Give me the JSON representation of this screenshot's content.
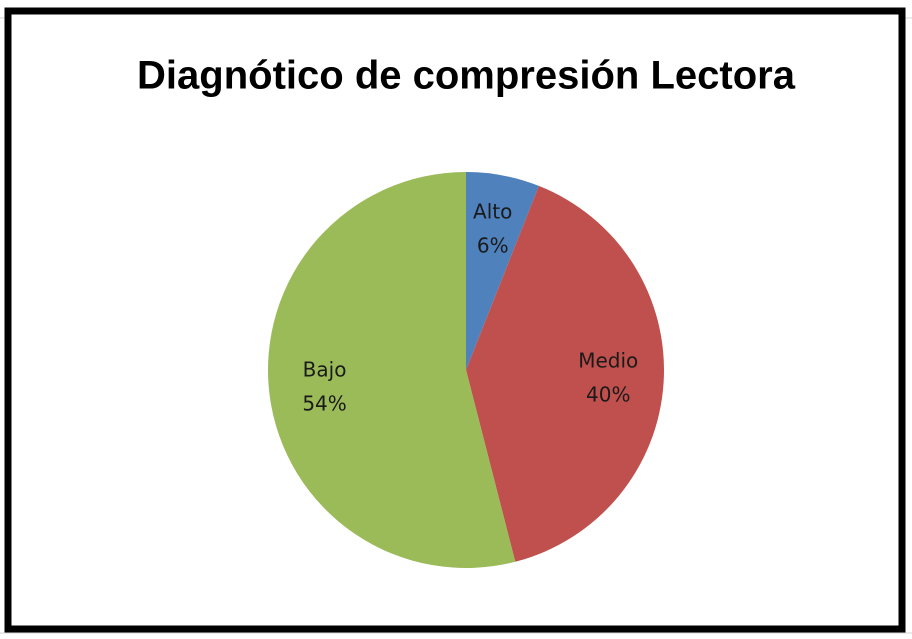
{
  "chart_data": {
    "type": "pie",
    "title": "Diagnótico de compresión Lectora",
    "categories": [
      "Alto",
      "Medio",
      "Bajo"
    ],
    "values": [
      6,
      40,
      54
    ],
    "value_labels": [
      "6%",
      "40%",
      "54%"
    ],
    "colors": [
      "#4f81bd",
      "#c0504d",
      "#9bbb59"
    ]
  }
}
